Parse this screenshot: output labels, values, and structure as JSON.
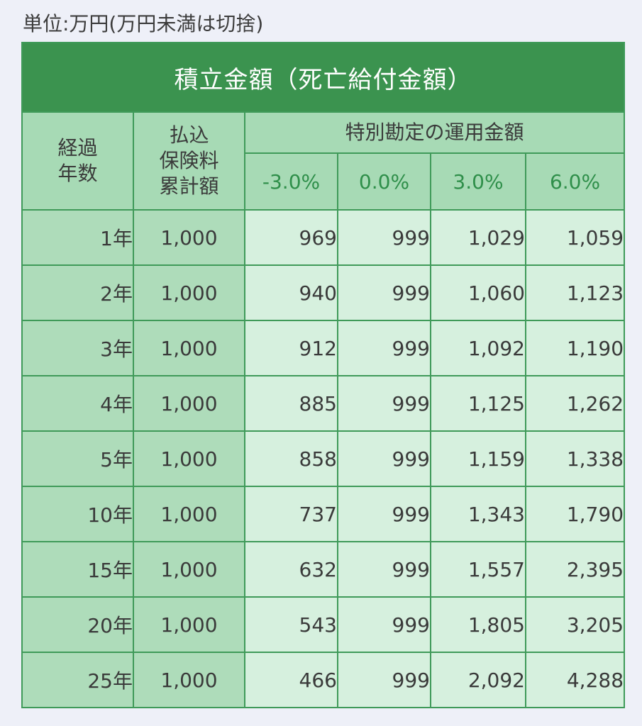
{
  "unit_note": "単位:万円(万円未満は切捨)",
  "table": {
    "title": "積立金額（死亡給付金額）",
    "headers": {
      "years": "経過\n年数",
      "premium": "払込\n保険料\n累計額",
      "fund": "特別勘定の運用金額",
      "rates": [
        "-3.0%",
        "0.0%",
        "3.0%",
        "6.0%"
      ]
    },
    "rows": [
      {
        "year": "1年",
        "premium": "1,000",
        "values": [
          "969",
          "999",
          "1,029",
          "1,059"
        ]
      },
      {
        "year": "2年",
        "premium": "1,000",
        "values": [
          "940",
          "999",
          "1,060",
          "1,123"
        ]
      },
      {
        "year": "3年",
        "premium": "1,000",
        "values": [
          "912",
          "999",
          "1,092",
          "1,190"
        ]
      },
      {
        "year": "4年",
        "premium": "1,000",
        "values": [
          "885",
          "999",
          "1,125",
          "1,262"
        ]
      },
      {
        "year": "5年",
        "premium": "1,000",
        "values": [
          "858",
          "999",
          "1,159",
          "1,338"
        ]
      },
      {
        "year": "10年",
        "premium": "1,000",
        "values": [
          "737",
          "999",
          "1,343",
          "1,790"
        ]
      },
      {
        "year": "15年",
        "premium": "1,000",
        "values": [
          "632",
          "999",
          "1,557",
          "2,395"
        ]
      },
      {
        "year": "20年",
        "premium": "1,000",
        "values": [
          "543",
          "999",
          "1,805",
          "3,205"
        ]
      },
      {
        "year": "25年",
        "premium": "1,000",
        "values": [
          "466",
          "999",
          "2,092",
          "4,288"
        ]
      }
    ]
  },
  "colors": {
    "title_bg": "#3b934f",
    "header_bg": "#a7dab5",
    "value_bg": "#d6f0de",
    "border": "#3f9a59",
    "rate_text": "#2f8f4a"
  }
}
